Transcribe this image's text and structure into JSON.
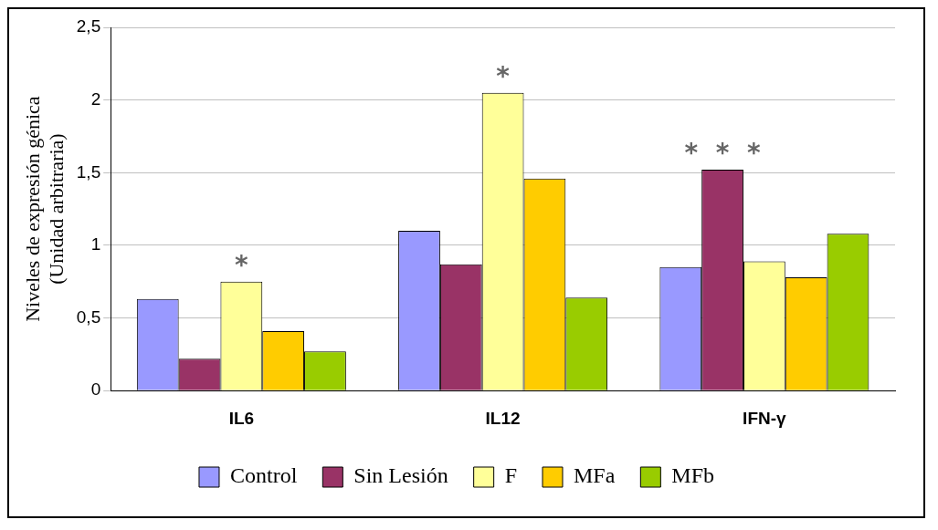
{
  "chart_data": {
    "type": "bar",
    "ylabel": "Niveles de expresión génica\n(Unidad arbitraria)",
    "categories": [
      "IL6",
      "IL12",
      "IFN-γ"
    ],
    "series": [
      {
        "name": "Control",
        "color": "#9999ff",
        "values": [
          0.63,
          1.1,
          0.85
        ]
      },
      {
        "name": "Sin Lesión",
        "color": "#993366",
        "values": [
          0.22,
          0.87,
          1.52
        ]
      },
      {
        "name": "F",
        "color": "#ffff99",
        "values": [
          0.75,
          2.05,
          0.89
        ]
      },
      {
        "name": "MFa",
        "color": "#ffcc00",
        "values": [
          0.41,
          1.46,
          0.78
        ]
      },
      {
        "name": "MFb",
        "color": "#99cc00",
        "values": [
          0.27,
          0.64,
          1.08
        ]
      }
    ],
    "ylim": [
      0,
      2.5
    ],
    "yticks": [
      0,
      {
        "value": 0.5,
        "label": "0,5"
      },
      1,
      {
        "value": 1.5,
        "label": "1,5"
      },
      2,
      {
        "value": 2.5,
        "label": "2,5"
      }
    ],
    "grid": "y",
    "legend": "bottom",
    "annotations": [
      "*",
      "*",
      "*  *  *"
    ]
  }
}
